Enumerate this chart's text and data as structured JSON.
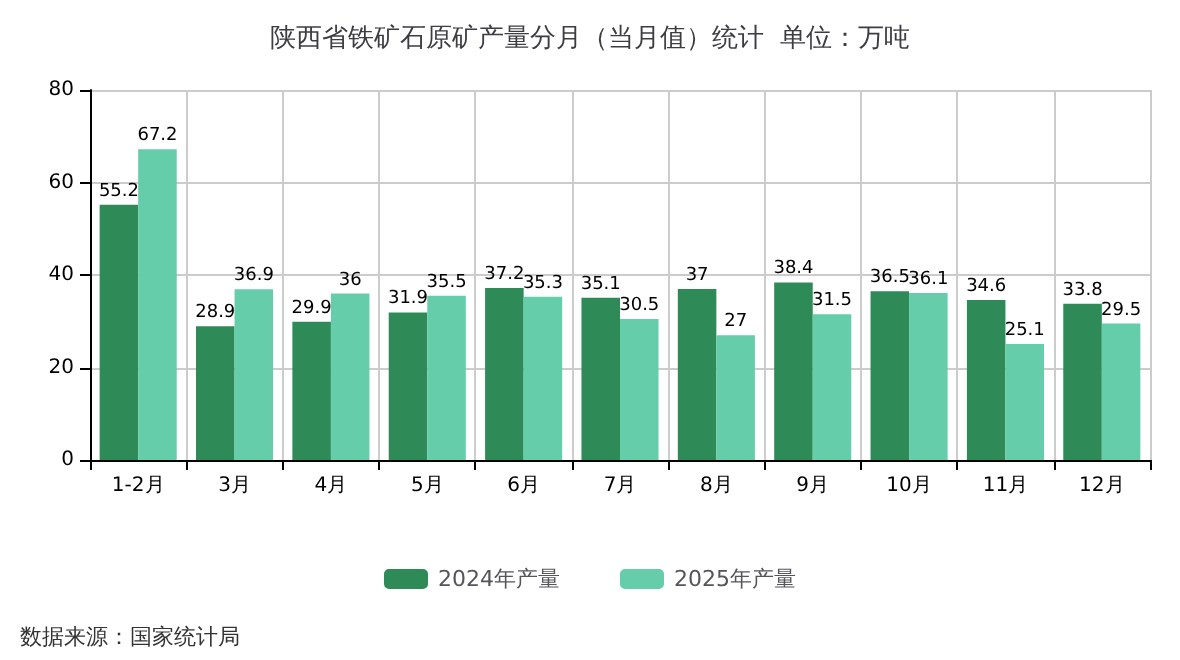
{
  "chart_data": {
    "type": "bar",
    "title": "陕西省铁矿石原矿产量分月（当月值）统计  单位：万吨",
    "categories": [
      "1-2月",
      "3月",
      "4月",
      "5月",
      "6月",
      "7月",
      "8月",
      "9月",
      "10月",
      "11月",
      "12月"
    ],
    "series": [
      {
        "name": "2024年产量",
        "color": "#2e8b57",
        "values": [
          55.2,
          28.9,
          29.9,
          31.9,
          37.2,
          35.1,
          37,
          38.4,
          36.5,
          34.6,
          33.8
        ]
      },
      {
        "name": "2025年产量",
        "color": "#66cdaa",
        "values": [
          67.2,
          36.9,
          36,
          35.5,
          35.3,
          30.5,
          27,
          31.5,
          36.1,
          25.1,
          29.5
        ]
      }
    ],
    "ylim": [
      0,
      80
    ],
    "yticks": [
      0,
      20,
      40,
      60,
      80
    ],
    "grid": true,
    "legend": "bottom",
    "data_labels": true,
    "annotations": [
      "数据来源：国家统计局"
    ]
  }
}
